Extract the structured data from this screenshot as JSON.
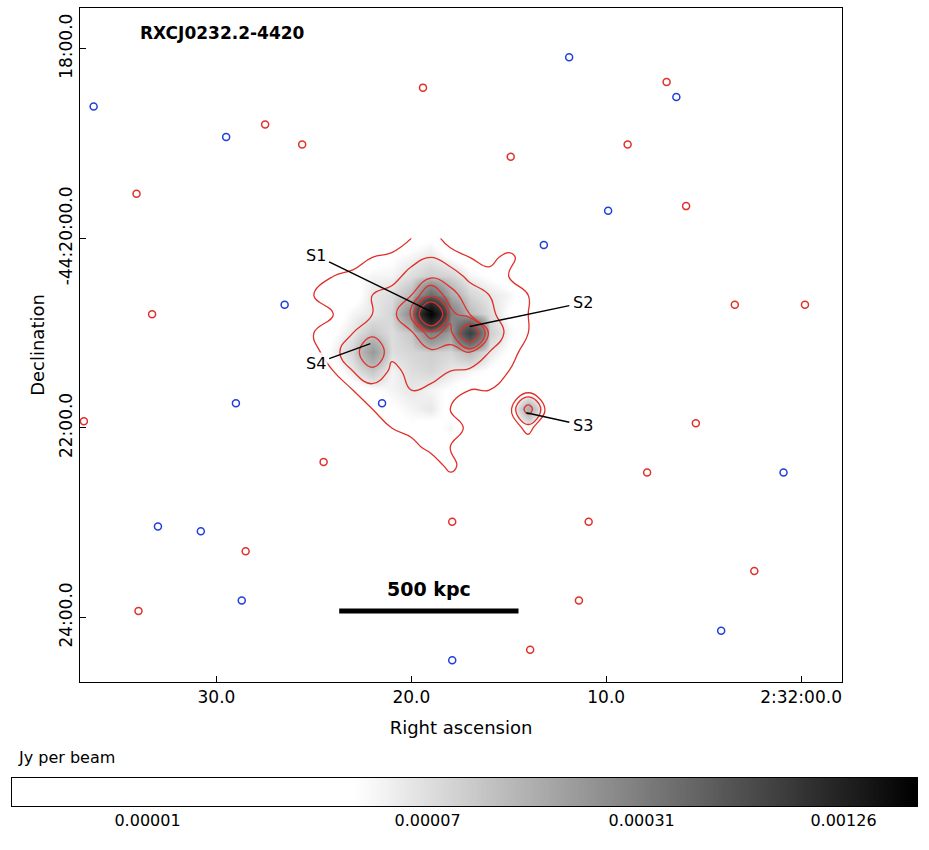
{
  "chart_data": {
    "type": "heatmap",
    "title": "RXCJ0232.2-4420",
    "x_label": "Right ascension",
    "y_label": "Declination",
    "xlim": [
      37.0,
      -2.1
    ],
    "xticks": [
      {
        "value": 30,
        "label": "30.0"
      },
      {
        "value": 20,
        "label": "20.0"
      },
      {
        "value": 10,
        "label": "10.0"
      },
      {
        "value": 0,
        "label": "2:32:00.0"
      }
    ],
    "ylim": [
      -24.68,
      -17.57
    ],
    "yticks": [
      {
        "value": -18,
        "label": "18:00.0"
      },
      {
        "value": -20,
        "label": "-44:20:00.0"
      },
      {
        "value": -22,
        "label": "22:00.0"
      },
      {
        "value": -24,
        "label": "24:00.0"
      }
    ],
    "grid": false,
    "x": [
      26,
      25,
      24,
      23,
      22,
      21,
      20,
      19,
      18,
      17,
      16,
      15,
      14,
      13,
      12,
      11,
      10
    ],
    "y": [
      -20.0,
      -20.2,
      -20.4,
      -20.6,
      -20.8,
      -21.0,
      -21.2,
      -21.4,
      -21.6,
      -21.8,
      -22.0,
      -22.2,
      -22.4,
      -22.6
    ],
    "cells": [
      [
        0,
        1e-05,
        0,
        2e-05,
        1e-05,
        0,
        3e-05,
        4e-05,
        2e-05,
        1e-05,
        3e-05,
        0,
        1e-05,
        0,
        1e-05,
        0,
        0
      ],
      [
        1e-05,
        0,
        2e-05,
        1e-05,
        3e-05,
        4e-05,
        5e-05,
        6e-05,
        4e-05,
        3e-05,
        2e-05,
        4e-05,
        1e-05,
        0,
        0,
        -3e-05,
        0
      ],
      [
        0,
        2e-05,
        3e-05,
        4e-05,
        5e-05,
        5e-05,
        7e-05,
        9e-05,
        8e-05,
        5e-05,
        4e-05,
        3e-05,
        2e-05,
        1e-05,
        0,
        0,
        1e-05
      ],
      [
        1e-05,
        3e-05,
        4e-05,
        3e-05,
        6e-05,
        7e-05,
        0.00012,
        0.0004,
        0.00015,
        8e-05,
        6e-05,
        5e-05,
        3e-05,
        2e-05,
        1e-05,
        0,
        0
      ],
      [
        0,
        2e-05,
        3e-05,
        5e-05,
        6e-05,
        8e-05,
        0.00025,
        0.002,
        0.0003,
        0.00012,
        7e-05,
        4e-05,
        3e-05,
        1e-05,
        0,
        1e-05,
        0
      ],
      [
        1e-05,
        3e-05,
        4e-05,
        6e-05,
        0.0001,
        7e-05,
        0.0001,
        0.0003,
        0.00018,
        0.0008,
        9e-05,
        5e-05,
        3e-05,
        2e-05,
        1e-05,
        0,
        0
      ],
      [
        0,
        2e-05,
        5e-05,
        8e-05,
        0.0002,
        7e-05,
        8e-05,
        9e-05,
        8e-05,
        0.00012,
        6e-05,
        4e-05,
        2e-05,
        1e-05,
        0,
        0,
        1e-05
      ],
      [
        1e-05,
        2e-05,
        3e-05,
        6e-05,
        0.0001,
        5e-05,
        7e-05,
        8e-05,
        6e-05,
        5e-05,
        4e-05,
        3e-05,
        2e-05,
        1e-05,
        1e-05,
        0,
        0
      ],
      [
        0,
        1e-05,
        2e-05,
        3e-05,
        4e-05,
        5e-05,
        6e-05,
        5e-05,
        4e-05,
        3e-05,
        3e-05,
        2e-05,
        1e-05,
        2e-05,
        1e-05,
        0,
        0
      ],
      [
        0,
        1e-05,
        1e-05,
        2e-05,
        3e-05,
        4e-05,
        5e-05,
        6e-05,
        3e-05,
        2e-05,
        2e-05,
        1e-05,
        0.00015,
        1e-05,
        0,
        0,
        0
      ],
      [
        1e-05,
        0,
        2e-05,
        1e-05,
        2e-05,
        3e-05,
        4e-05,
        3e-05,
        5e-05,
        2e-05,
        1e-05,
        1e-05,
        4e-05,
        0,
        1e-05,
        0,
        0
      ],
      [
        0,
        1e-05,
        0,
        2e-05,
        1e-05,
        3e-05,
        2e-05,
        4e-05,
        3e-05,
        2e-05,
        1e-05,
        0,
        1e-05,
        0,
        0,
        1e-05,
        0
      ],
      [
        0,
        0,
        1e-05,
        0,
        3e-05,
        1e-05,
        2e-05,
        1e-05,
        4e-05,
        1e-05,
        0,
        1e-05,
        0,
        0,
        -3e-05,
        0,
        0
      ],
      [
        0,
        1e-05,
        0,
        1e-05,
        0,
        2e-05,
        1e-05,
        3e-05,
        1e-05,
        0,
        1e-05,
        0,
        0,
        1e-05,
        0,
        0,
        0
      ]
    ],
    "colorbar": {
      "title": "Jy per beam",
      "range": [
        3.9e-06,
        0.0021
      ],
      "ticks": [
        {
          "value": 1e-05,
          "label": "0.00001"
        },
        {
          "value": 7e-05,
          "label": "0.00007"
        },
        {
          "value": 0.00031,
          "label": "0.00031"
        },
        {
          "value": 0.00126,
          "label": "0.00126"
        }
      ]
    },
    "contours": [
      {
        "levels": [
          3e-05,
          6e-05,
          0.00012,
          0.00024,
          0.00048,
          0.00096
        ],
        "color": "#e0302a",
        "sources": {
          "x": [
            27.5,
            34.1,
            36.8,
            25.6,
            8.9,
            6.9,
            3.4,
            -0.2,
            5.9,
            10.9,
            28.5,
            2.4,
            33.3,
            19.4,
            14.9,
            5.4,
            24.5,
            11.4,
            34.0,
            7.9,
            17.9,
            13.9
          ],
          "y": [
            -18.8,
            -19.53,
            -21.93,
            -19.01,
            -19.01,
            -18.35,
            -20.7,
            -20.7,
            -19.66,
            -22.99,
            -23.3,
            -23.51,
            -20.8,
            -18.41,
            -19.14,
            -21.95,
            -22.36,
            -23.82,
            -23.93,
            -22.47,
            -22.99,
            -24.34
          ]
        }
      },
      {
        "levels": [
          -3e-05
        ],
        "color": "#1f3fd8",
        "sources": {
          "x": [
            36.3,
            29.5,
            26.5,
            29.0,
            33.0,
            30.8,
            6.4,
            11.9,
            13.2,
            0.9,
            4.1,
            21.5,
            17.9,
            28.7,
            9.9
          ],
          "y": [
            -18.61,
            -18.93,
            -20.7,
            -21.74,
            -23.04,
            -23.09,
            -18.51,
            -18.09,
            -20.07,
            -22.47,
            -24.14,
            -21.74,
            -24.45,
            -23.82,
            -19.71
          ]
        }
      }
    ],
    "labels": [
      {
        "text": "S1",
        "x": 18.9,
        "y": -20.78,
        "text_x": 24.9,
        "text_y": -20.18
      },
      {
        "text": "S2",
        "x": 17.0,
        "y": -20.93,
        "text_x": 11.2,
        "text_y": -20.68
      },
      {
        "text": "S4",
        "x": 22.1,
        "y": -21.11,
        "text_x": 24.9,
        "text_y": -21.32
      },
      {
        "text": "S3",
        "x": 14.1,
        "y": -21.84,
        "text_x": 11.2,
        "text_y": -21.97
      }
    ],
    "scale_bar": {
      "text": "500 kpc",
      "x": [
        23.7,
        14.5
      ],
      "y": -23.93
    }
  }
}
